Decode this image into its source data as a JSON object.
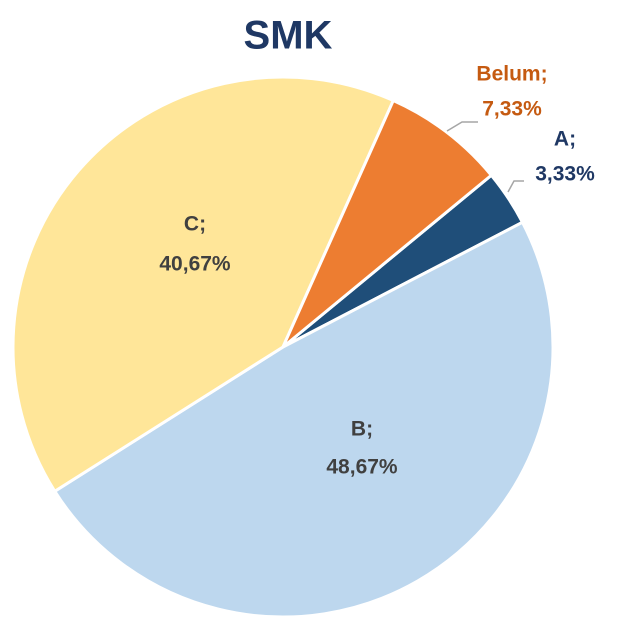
{
  "chart_data": {
    "type": "pie",
    "title": "SMK",
    "categories": [
      "A;",
      "B;",
      "C;",
      "Belum;"
    ],
    "values": [
      3.33,
      48.67,
      40.67,
      7.33
    ],
    "value_labels": [
      "3,33%",
      "48,67%",
      "40,67%",
      "7,33%"
    ],
    "colors": [
      "#1f4e79",
      "#bdd7ee",
      "#ffe699",
      "#ed7d31"
    ],
    "label_colors": [
      "#1f3864",
      "#404040",
      "#404040",
      "#c55a11"
    ]
  }
}
